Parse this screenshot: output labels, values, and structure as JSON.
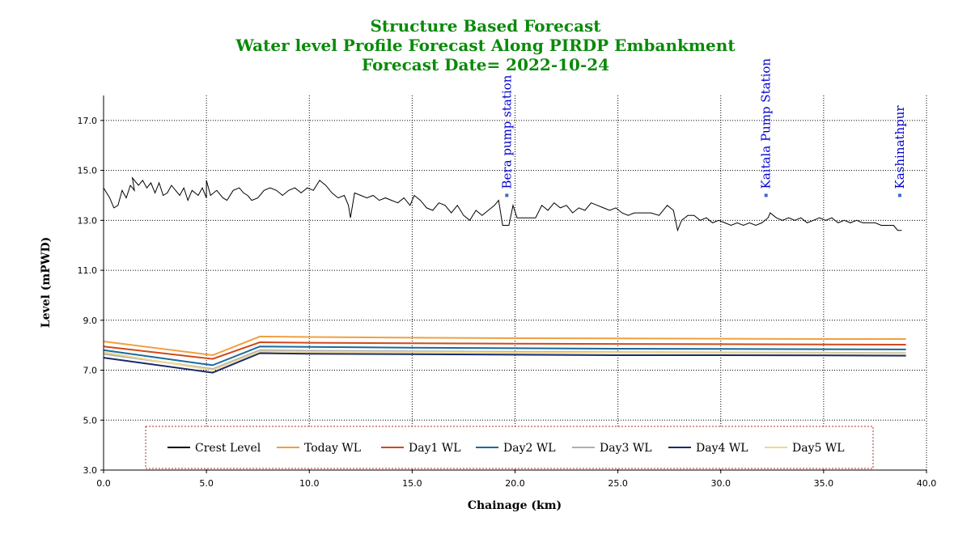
{
  "chart_data": {
    "type": "line",
    "title": "Structure Based Forecast",
    "subtitle": "Water level Profile Forecast Along PIRDP Embankment",
    "forecast_date": "Forecast Date= 2022-10-24",
    "xlabel": "Chainage (km)",
    "ylabel": "Level (mPWD)",
    "xlim": [
      0,
      40
    ],
    "ylim": [
      3,
      18
    ],
    "xticks": [
      0,
      5,
      10,
      15,
      20,
      25,
      30,
      35,
      40
    ],
    "xtick_labels": [
      "0.0",
      "5.0",
      "10.0",
      "15.0",
      "20.0",
      "25.0",
      "30.0",
      "35.0",
      "40.0"
    ],
    "yticks": [
      3,
      5,
      7,
      9,
      11,
      13,
      15,
      17
    ],
    "ytick_labels": [
      "3.0",
      "5.0",
      "7.0",
      "9.0",
      "11.0",
      "13.0",
      "15.0",
      "17.0"
    ],
    "grid": true,
    "legend_position": "bottom",
    "annotations": [
      {
        "text": "Bera pump station",
        "x": 19.6,
        "y": 14.0
      },
      {
        "text": "Kaitala Pump Station",
        "x": 32.2,
        "y": 14.0
      },
      {
        "text": "Kashinathpur",
        "x": 38.7,
        "y": 14.0
      }
    ],
    "series": [
      {
        "name": "Crest Level",
        "color": "#000000",
        "points": [
          [
            0,
            14.3
          ],
          [
            0.3,
            13.9
          ],
          [
            0.5,
            13.5
          ],
          [
            0.7,
            13.6
          ],
          [
            0.9,
            14.2
          ],
          [
            1.1,
            13.9
          ],
          [
            1.3,
            14.4
          ],
          [
            1.5,
            14.2
          ],
          [
            1.4,
            14.7
          ],
          [
            1.7,
            14.4
          ],
          [
            1.9,
            14.6
          ],
          [
            2.1,
            14.3
          ],
          [
            2.3,
            14.5
          ],
          [
            2.5,
            14.1
          ],
          [
            2.7,
            14.5
          ],
          [
            2.9,
            14.0
          ],
          [
            3.1,
            14.1
          ],
          [
            3.3,
            14.4
          ],
          [
            3.5,
            14.2
          ],
          [
            3.7,
            14.0
          ],
          [
            3.9,
            14.3
          ],
          [
            4.1,
            13.8
          ],
          [
            4.3,
            14.2
          ],
          [
            4.6,
            14.0
          ],
          [
            4.8,
            14.3
          ],
          [
            5.0,
            13.9
          ],
          [
            5.0,
            14.6
          ],
          [
            5.2,
            14.0
          ],
          [
            5.5,
            14.2
          ],
          [
            5.8,
            13.9
          ],
          [
            6.0,
            13.8
          ],
          [
            6.3,
            14.2
          ],
          [
            6.6,
            14.3
          ],
          [
            6.8,
            14.1
          ],
          [
            7.0,
            14.0
          ],
          [
            7.2,
            13.8
          ],
          [
            7.5,
            13.9
          ],
          [
            7.8,
            14.2
          ],
          [
            8.1,
            14.3
          ],
          [
            8.4,
            14.2
          ],
          [
            8.7,
            14.0
          ],
          [
            9.0,
            14.2
          ],
          [
            9.3,
            14.3
          ],
          [
            9.6,
            14.1
          ],
          [
            9.9,
            14.3
          ],
          [
            10.2,
            14.2
          ],
          [
            10.5,
            14.6
          ],
          [
            10.8,
            14.4
          ],
          [
            11.1,
            14.1
          ],
          [
            11.4,
            13.9
          ],
          [
            11.7,
            14.0
          ],
          [
            11.9,
            13.6
          ],
          [
            12.0,
            13.1
          ],
          [
            12.2,
            14.1
          ],
          [
            12.5,
            14.0
          ],
          [
            12.8,
            13.9
          ],
          [
            13.1,
            14.0
          ],
          [
            13.4,
            13.8
          ],
          [
            13.7,
            13.9
          ],
          [
            14.0,
            13.8
          ],
          [
            14.3,
            13.7
          ],
          [
            14.6,
            13.9
          ],
          [
            14.9,
            13.6
          ],
          [
            15.1,
            14.0
          ],
          [
            15.4,
            13.8
          ],
          [
            15.7,
            13.5
          ],
          [
            16.0,
            13.4
          ],
          [
            16.3,
            13.7
          ],
          [
            16.6,
            13.6
          ],
          [
            16.9,
            13.3
          ],
          [
            17.2,
            13.6
          ],
          [
            17.5,
            13.2
          ],
          [
            17.8,
            13.0
          ],
          [
            18.1,
            13.4
          ],
          [
            18.4,
            13.2
          ],
          [
            18.7,
            13.4
          ],
          [
            19.0,
            13.6
          ],
          [
            19.2,
            13.8
          ],
          [
            19.4,
            12.8
          ],
          [
            19.7,
            12.8
          ],
          [
            19.9,
            13.6
          ],
          [
            20.1,
            13.1
          ],
          [
            20.6,
            13.1
          ],
          [
            21.0,
            13.1
          ],
          [
            21.3,
            13.6
          ],
          [
            21.6,
            13.4
          ],
          [
            21.9,
            13.7
          ],
          [
            22.2,
            13.5
          ],
          [
            22.5,
            13.6
          ],
          [
            22.8,
            13.3
          ],
          [
            23.1,
            13.5
          ],
          [
            23.4,
            13.4
          ],
          [
            23.7,
            13.7
          ],
          [
            24.0,
            13.6
          ],
          [
            24.3,
            13.5
          ],
          [
            24.6,
            13.4
          ],
          [
            24.9,
            13.5
          ],
          [
            25.2,
            13.3
          ],
          [
            25.5,
            13.2
          ],
          [
            25.8,
            13.3
          ],
          [
            26.2,
            13.3
          ],
          [
            26.6,
            13.3
          ],
          [
            27.0,
            13.2
          ],
          [
            27.4,
            13.6
          ],
          [
            27.7,
            13.4
          ],
          [
            27.9,
            12.6
          ],
          [
            28.1,
            13.0
          ],
          [
            28.4,
            13.2
          ],
          [
            28.7,
            13.2
          ],
          [
            29.0,
            13.0
          ],
          [
            29.3,
            13.1
          ],
          [
            29.6,
            12.9
          ],
          [
            29.9,
            13.0
          ],
          [
            30.2,
            12.9
          ],
          [
            30.5,
            12.8
          ],
          [
            30.8,
            12.9
          ],
          [
            31.1,
            12.8
          ],
          [
            31.4,
            12.9
          ],
          [
            31.7,
            12.8
          ],
          [
            32.0,
            12.9
          ],
          [
            32.3,
            13.1
          ],
          [
            32.4,
            13.3
          ],
          [
            32.7,
            13.1
          ],
          [
            33.0,
            13.0
          ],
          [
            33.3,
            13.1
          ],
          [
            33.6,
            13.0
          ],
          [
            33.9,
            13.1
          ],
          [
            34.2,
            12.9
          ],
          [
            34.5,
            13.0
          ],
          [
            34.8,
            13.1
          ],
          [
            35.1,
            13.0
          ],
          [
            35.4,
            13.1
          ],
          [
            35.7,
            12.9
          ],
          [
            36.0,
            13.0
          ],
          [
            36.3,
            12.9
          ],
          [
            36.6,
            13.0
          ],
          [
            36.9,
            12.9
          ],
          [
            37.2,
            12.9
          ],
          [
            37.5,
            12.9
          ],
          [
            37.8,
            12.8
          ],
          [
            38.1,
            12.8
          ],
          [
            38.4,
            12.8
          ],
          [
            38.6,
            12.6
          ],
          [
            38.8,
            12.6
          ]
        ]
      },
      {
        "name": "Today WL",
        "color": "#f0a040",
        "points": [
          [
            0,
            8.15
          ],
          [
            5.3,
            7.6
          ],
          [
            7.6,
            8.35
          ],
          [
            10,
            8.33
          ],
          [
            15,
            8.3
          ],
          [
            20,
            8.28
          ],
          [
            25,
            8.27
          ],
          [
            30,
            8.26
          ],
          [
            35,
            8.25
          ],
          [
            39,
            8.25
          ]
        ]
      },
      {
        "name": "Day1 WL",
        "color": "#d04a1a",
        "points": [
          [
            0,
            7.95
          ],
          [
            5.3,
            7.45
          ],
          [
            7.6,
            8.12
          ],
          [
            10,
            8.1
          ],
          [
            15,
            8.08
          ],
          [
            20,
            8.06
          ],
          [
            25,
            8.05
          ],
          [
            30,
            8.04
          ],
          [
            35,
            8.03
          ],
          [
            39,
            8.02
          ]
        ]
      },
      {
        "name": "Day2 WL",
        "color": "#1a6a9a",
        "points": [
          [
            0,
            7.8
          ],
          [
            5.3,
            7.2
          ],
          [
            7.6,
            7.95
          ],
          [
            10,
            7.93
          ],
          [
            15,
            7.9
          ],
          [
            20,
            7.88
          ],
          [
            25,
            7.86
          ],
          [
            30,
            7.85
          ],
          [
            35,
            7.84
          ],
          [
            39,
            7.83
          ]
        ]
      },
      {
        "name": "Day3 WL",
        "color": "#b0b0b0",
        "points": [
          [
            0,
            7.65
          ],
          [
            5.3,
            7.05
          ],
          [
            7.6,
            7.8
          ],
          [
            10,
            7.78
          ],
          [
            15,
            7.76
          ],
          [
            20,
            7.74
          ],
          [
            25,
            7.72
          ],
          [
            30,
            7.71
          ],
          [
            35,
            7.7
          ],
          [
            39,
            7.69
          ]
        ]
      },
      {
        "name": "Day4 WL",
        "color": "#1a2a6a",
        "points": [
          [
            0,
            7.5
          ],
          [
            5.3,
            6.9
          ],
          [
            7.6,
            7.68
          ],
          [
            10,
            7.66
          ],
          [
            15,
            7.64
          ],
          [
            20,
            7.62
          ],
          [
            25,
            7.6
          ],
          [
            30,
            7.6
          ],
          [
            35,
            7.59
          ],
          [
            39,
            7.58
          ]
        ]
      },
      {
        "name": "Day5 WL",
        "color": "#f0d890",
        "points": [
          [
            0,
            7.72
          ],
          [
            5.3,
            7.0
          ],
          [
            7.6,
            7.75
          ],
          [
            10,
            7.73
          ],
          [
            15,
            7.72
          ],
          [
            20,
            7.7
          ],
          [
            25,
            7.7
          ],
          [
            30,
            7.69
          ],
          [
            35,
            7.68
          ],
          [
            39,
            7.67
          ]
        ]
      }
    ]
  }
}
